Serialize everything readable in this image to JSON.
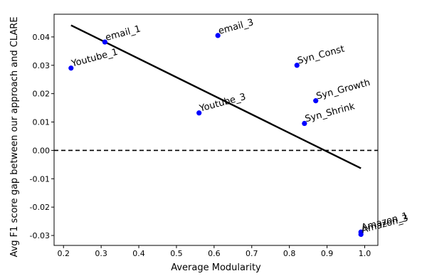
{
  "chart_data": {
    "type": "scatter",
    "xlabel": "Average Modularity",
    "ylabel": "Avg F1 score gap between our approach and CLARE",
    "xlim": [
      0.175,
      1.035
    ],
    "ylim": [
      -0.0335,
      0.048
    ],
    "x_ticks": [
      0.2,
      0.3,
      0.4,
      0.5,
      0.6,
      0.7,
      0.8,
      0.9,
      1.0
    ],
    "x_tick_labels": [
      "0.2",
      "0.3",
      "0.4",
      "0.5",
      "0.6",
      "0.7",
      "0.8",
      "0.9",
      "1.0"
    ],
    "y_ticks": [
      0.04,
      0.03,
      0.02,
      0.01,
      0.0,
      -0.01,
      -0.02,
      -0.03
    ],
    "y_tick_labels": [
      "0.04",
      "0.03",
      "0.02",
      "0.01",
      "0.00",
      "-0.01",
      "-0.02",
      "-0.03"
    ],
    "grid": false,
    "point_color": "#0000ff",
    "points": [
      {
        "label": "email_1",
        "x": 0.31,
        "y": 0.0382
      },
      {
        "label": "email_3",
        "x": 0.61,
        "y": 0.0405
      },
      {
        "label": "Youtube_1",
        "x": 0.22,
        "y": 0.029
      },
      {
        "label": "Youtube_3",
        "x": 0.56,
        "y": 0.0132
      },
      {
        "label": "Syn_Const",
        "x": 0.82,
        "y": 0.03
      },
      {
        "label": "Syn_Growth",
        "x": 0.87,
        "y": 0.0175
      },
      {
        "label": "Syn_Shrink",
        "x": 0.84,
        "y": 0.0095
      },
      {
        "label": "Amazon_1",
        "x": 0.99,
        "y": -0.0288
      },
      {
        "label": "Amazon_3",
        "x": 0.99,
        "y": -0.0296
      }
    ],
    "trend_line": {
      "x": [
        0.22,
        0.99
      ],
      "y": [
        0.0441,
        -0.0063
      ],
      "color": "#000000"
    },
    "reference_line": {
      "y": 0.0,
      "style": "dashed",
      "color": "#000000"
    }
  }
}
